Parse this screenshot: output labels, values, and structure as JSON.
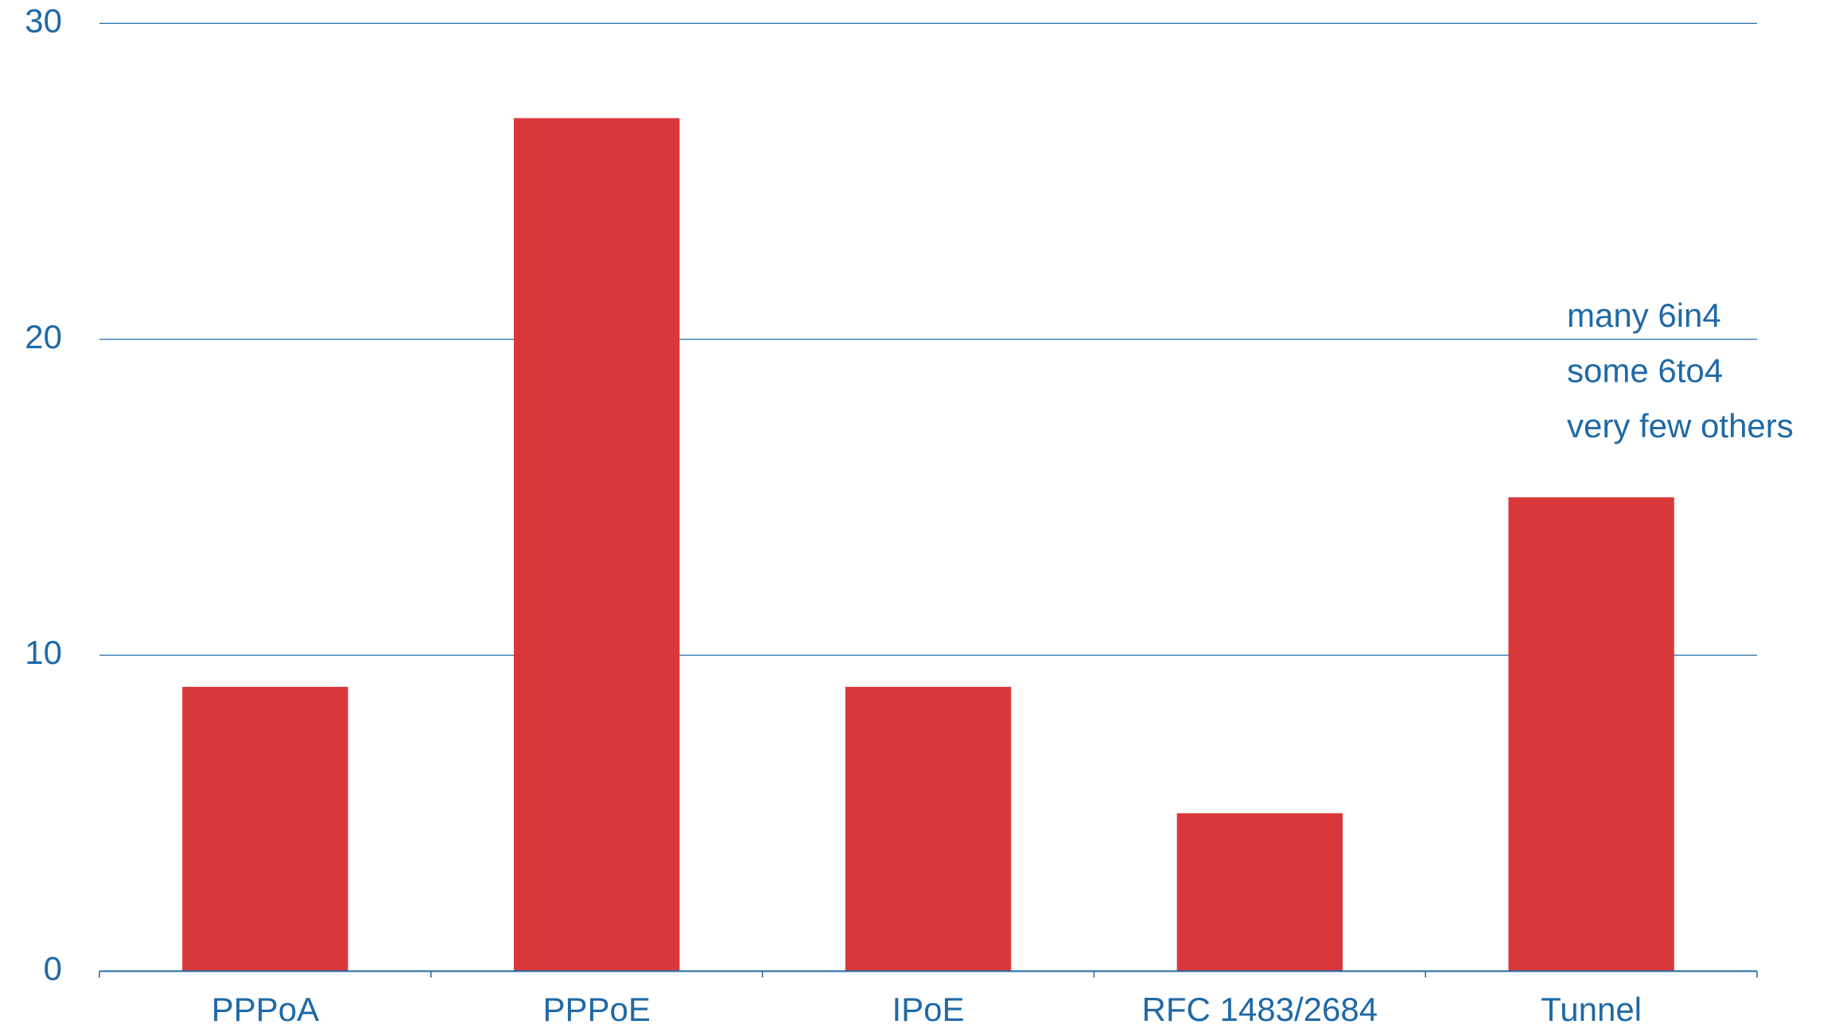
{
  "chart_data": {
    "type": "bar",
    "categories": [
      "PPPoA",
      "PPPoE",
      "IPoE",
      "RFC 1483/2684",
      "Tunnel"
    ],
    "values": [
      9,
      27,
      9,
      5,
      15
    ],
    "color": "#d9383a",
    "ylim": [
      0,
      30
    ],
    "yticks": [
      0,
      10,
      20,
      30
    ],
    "grid": true,
    "annotations": [
      "many 6in4",
      "some 6to4",
      "very few others"
    ]
  }
}
